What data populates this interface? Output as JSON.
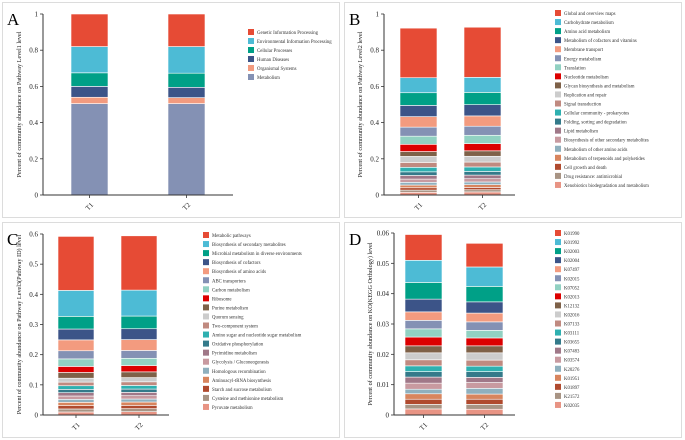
{
  "chart_data": [
    {
      "id": "A",
      "type": "bar",
      "stacked": true,
      "panel_label": "A",
      "ylabel": "Percent of community abundance on Pathway Level1 level",
      "categories": [
        "T1",
        "T2"
      ],
      "ylim": [
        0,
        1
      ],
      "ytick_step": 0.2,
      "ytick_labels": [
        "0",
        "0.2",
        "0.4",
        "0.6",
        "0.8",
        "1"
      ],
      "series": [
        {
          "name": "Genetic Information Processing",
          "color": "#e64b35",
          "values": [
            0.18,
            0.18
          ]
        },
        {
          "name": "Environmental Information Processing",
          "color": "#4dbbd5",
          "values": [
            0.145,
            0.147
          ]
        },
        {
          "name": "Cellular Processes",
          "color": "#00a087",
          "values": [
            0.075,
            0.078
          ]
        },
        {
          "name": "Human Diseases",
          "color": "#3c5488",
          "values": [
            0.06,
            0.057
          ]
        },
        {
          "name": "Organismal Systems",
          "color": "#f39b7f",
          "values": [
            0.035,
            0.033
          ]
        },
        {
          "name": "Metabolism",
          "color": "#8491b4",
          "values": [
            0.505,
            0.505
          ]
        }
      ]
    },
    {
      "id": "B",
      "type": "bar",
      "stacked": true,
      "panel_label": "B",
      "ylabel": "Percent of community abundance on Pathway Level2 level",
      "categories": [
        "T1",
        "T2"
      ],
      "ylim": [
        0,
        1
      ],
      "ytick_step": 0.2,
      "ytick_labels": [
        "0",
        "0.2",
        "0.4",
        "0.6",
        "0.8",
        "1"
      ],
      "series": [
        {
          "name": "Global and overview maps",
          "color": "#e64b35",
          "values": [
            0.274,
            0.277
          ]
        },
        {
          "name": "Carbohydrate metabolism",
          "color": "#4dbbd5",
          "values": [
            0.083,
            0.083
          ]
        },
        {
          "name": "Amino acid metabolism",
          "color": "#00a087",
          "values": [
            0.07,
            0.068
          ]
        },
        {
          "name": "Metabolism of cofactors and vitamins",
          "color": "#3c5488",
          "values": [
            0.062,
            0.062
          ]
        },
        {
          "name": "Membrane transport",
          "color": "#f39b7f",
          "values": [
            0.058,
            0.057
          ]
        },
        {
          "name": "Energy metabolism",
          "color": "#8491b4",
          "values": [
            0.05,
            0.05
          ]
        },
        {
          "name": "Translation",
          "color": "#91d1c2",
          "values": [
            0.045,
            0.046
          ]
        },
        {
          "name": "Nucleotide metabolism",
          "color": "#dc0000",
          "values": [
            0.04,
            0.04
          ]
        },
        {
          "name": "Glycan biosynthesis and metabolism",
          "color": "#7e6148",
          "values": [
            0.027,
            0.03
          ]
        },
        {
          "name": "Replication and repair",
          "color": "#cccccc",
          "values": [
            0.033,
            0.032
          ]
        },
        {
          "name": "Signal transduction",
          "color": "#c08a80",
          "values": [
            0.027,
            0.027
          ]
        },
        {
          "name": "Cellular community - prokaryotes",
          "color": "#2fb0b0",
          "values": [
            0.025,
            0.025
          ]
        },
        {
          "name": "Folding, sorting and degradation",
          "color": "#347a8a",
          "values": [
            0.02,
            0.02
          ]
        },
        {
          "name": "Lipid metabolism",
          "color": "#a07888",
          "values": [
            0.02,
            0.02
          ]
        },
        {
          "name": "Biosynthesis of other secondary metabolites",
          "color": "#c89aa0",
          "values": [
            0.018,
            0.018
          ]
        },
        {
          "name": "Metabolism of other amino acids",
          "color": "#8fb0be",
          "values": [
            0.015,
            0.015
          ]
        },
        {
          "name": "Metabolism of terpenoids and polyketides",
          "color": "#d8855e",
          "values": [
            0.015,
            0.015
          ]
        },
        {
          "name": "Cell growth and death",
          "color": "#b04a2e",
          "values": [
            0.013,
            0.013
          ]
        },
        {
          "name": "Drug resistance: antimicrobial",
          "color": "#a89484",
          "values": [
            0.012,
            0.012
          ]
        },
        {
          "name": "Xenobiotics biodegradation and metabolism",
          "color": "#e89484",
          "values": [
            0.015,
            0.017
          ]
        }
      ]
    },
    {
      "id": "C",
      "type": "bar",
      "stacked": true,
      "panel_label": "C",
      "ylabel": "Percent of community abundance on Pathway Level3(Pathway ID) level",
      "categories": [
        "T1",
        "T2"
      ],
      "ylim": [
        0,
        0.6
      ],
      "ytick_step": 0.1,
      "ytick_labels": [
        "0",
        "0.1",
        "0.2",
        "0.3",
        "0.4",
        "0.5",
        "0.6"
      ],
      "series": [
        {
          "name": "Metabolic pathways",
          "color": "#e64b35",
          "values": [
            0.179,
            0.18
          ]
        },
        {
          "name": "Biosynthesis of secondary metabolites",
          "color": "#4dbbd5",
          "values": [
            0.086,
            0.086
          ]
        },
        {
          "name": "Microbial metabolism in diverse environments",
          "color": "#00a087",
          "values": [
            0.042,
            0.042
          ]
        },
        {
          "name": "Biosynthesis of cofactors",
          "color": "#3c5488",
          "values": [
            0.036,
            0.036
          ]
        },
        {
          "name": "Biosynthesis of amino acids",
          "color": "#f39b7f",
          "values": [
            0.036,
            0.036
          ]
        },
        {
          "name": "ABC transporters",
          "color": "#8491b4",
          "values": [
            0.027,
            0.026
          ]
        },
        {
          "name": "Carbon metabolism",
          "color": "#91d1c2",
          "values": [
            0.025,
            0.024
          ]
        },
        {
          "name": "Ribosome",
          "color": "#dc0000",
          "values": [
            0.02,
            0.021
          ]
        },
        {
          "name": "Purine metabolism",
          "color": "#7e6148",
          "values": [
            0.019,
            0.019
          ]
        },
        {
          "name": "Quorum sensing",
          "color": "#cccccc",
          "values": [
            0.013,
            0.014
          ]
        },
        {
          "name": "Two-component system",
          "color": "#c08a80",
          "values": [
            0.012,
            0.012
          ]
        },
        {
          "name": "Amino sugar and nucleotide sugar metabolism",
          "color": "#2fb0b0",
          "values": [
            0.012,
            0.012
          ]
        },
        {
          "name": "Oxidative phosphorylation",
          "color": "#347a8a",
          "values": [
            0.011,
            0.011
          ]
        },
        {
          "name": "Pyrimidine metabolism",
          "color": "#a07888",
          "values": [
            0.011,
            0.011
          ]
        },
        {
          "name": "Glycolysis / Gluconeogenesis",
          "color": "#c89aa0",
          "values": [
            0.011,
            0.011
          ]
        },
        {
          "name": "Homologous recombination",
          "color": "#8fb0be",
          "values": [
            0.01,
            0.01
          ]
        },
        {
          "name": "Aminoacyl-tRNA biosynthesis",
          "color": "#d8855e",
          "values": [
            0.011,
            0.011
          ]
        },
        {
          "name": "Starch and sucrose metabolism",
          "color": "#b04a2e",
          "values": [
            0.011,
            0.011
          ]
        },
        {
          "name": "Cysteine and methionine metabolism",
          "color": "#a89484",
          "values": [
            0.01,
            0.01
          ]
        },
        {
          "name": "Pyruvate metabolism",
          "color": "#e89484",
          "values": [
            0.01,
            0.011
          ]
        }
      ]
    },
    {
      "id": "D",
      "type": "bar",
      "stacked": true,
      "panel_label": "D",
      "ylabel": "Percent of community abundance on KO(KEGG Orthology) level",
      "categories": [
        "T1",
        "T2"
      ],
      "ylim": [
        0,
        0.06
      ],
      "ytick_step": 0.01,
      "ytick_labels": [
        "0",
        "0.01",
        "0.02",
        "0.03",
        "0.04",
        "0.05",
        "0.06"
      ],
      "series": [
        {
          "name": "K01990",
          "color": "#e64b35",
          "values": [
            0.0085,
            0.0078
          ]
        },
        {
          "name": "K01992",
          "color": "#4dbbd5",
          "values": [
            0.0073,
            0.0064
          ]
        },
        {
          "name": "K02003",
          "color": "#00a087",
          "values": [
            0.0055,
            0.0051
          ]
        },
        {
          "name": "K02004",
          "color": "#3c5488",
          "values": [
            0.0042,
            0.0037
          ]
        },
        {
          "name": "K07497",
          "color": "#f39b7f",
          "values": [
            0.0028,
            0.0029
          ]
        },
        {
          "name": "K02015",
          "color": "#8491b4",
          "values": [
            0.0028,
            0.0028
          ]
        },
        {
          "name": "K07052",
          "color": "#91d1c2",
          "values": [
            0.0027,
            0.0025
          ]
        },
        {
          "name": "K02013",
          "color": "#dc0000",
          "values": [
            0.0029,
            0.0026
          ]
        },
        {
          "name": "K12132",
          "color": "#7e6148",
          "values": [
            0.0023,
            0.0023
          ]
        },
        {
          "name": "K02016",
          "color": "#cccccc",
          "values": [
            0.0023,
            0.0024
          ]
        },
        {
          "name": "K07133",
          "color": "#c08a80",
          "values": [
            0.002,
            0.002
          ]
        },
        {
          "name": "K03111",
          "color": "#2fb0b0",
          "values": [
            0.0019,
            0.0018
          ]
        },
        {
          "name": "K03655",
          "color": "#347a8a",
          "values": [
            0.0018,
            0.0019
          ]
        },
        {
          "name": "K07483",
          "color": "#a07888",
          "values": [
            0.002,
            0.0017
          ]
        },
        {
          "name": "K03574",
          "color": "#c89aa0",
          "values": [
            0.002,
            0.0019
          ]
        },
        {
          "name": "K20276",
          "color": "#8fb0be",
          "values": [
            0.0015,
            0.0019
          ]
        },
        {
          "name": "K01951",
          "color": "#d8855e",
          "values": [
            0.0018,
            0.0017
          ]
        },
        {
          "name": "K01897",
          "color": "#b04a2e",
          "values": [
            0.0017,
            0.0017
          ]
        },
        {
          "name": "K21572",
          "color": "#a89484",
          "values": [
            0.0015,
            0.0016
          ]
        },
        {
          "name": "K02035",
          "color": "#e89484",
          "values": [
            0.002,
            0.0019
          ]
        }
      ]
    }
  ]
}
